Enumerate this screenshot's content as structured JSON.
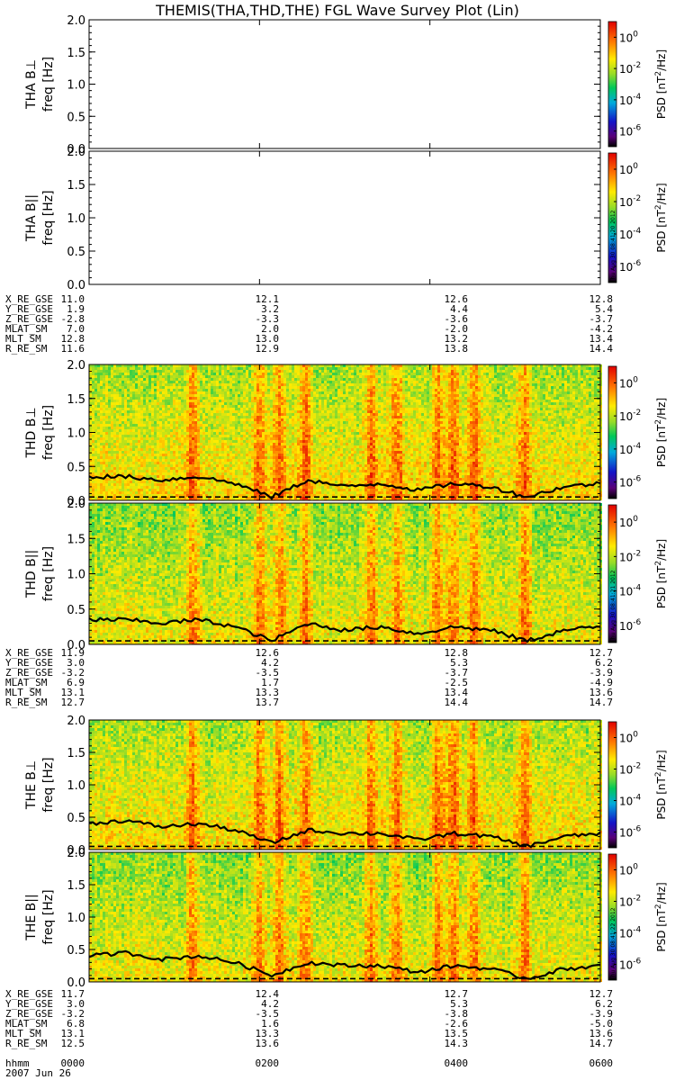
{
  "title": "THEMIS(THA,THD,THE) FGL Wave Survey Plot (Lin)",
  "colorbar": {
    "label_prefix": "PSD [nT",
    "label_suffix": "/Hz]",
    "label_sup": "2",
    "ticks": [
      {
        "base": "10",
        "exp": "0",
        "v": 0
      },
      {
        "base": "10",
        "exp": "-2",
        "v": -2
      },
      {
        "base": "10",
        "exp": "-4",
        "v": -4
      },
      {
        "base": "10",
        "exp": "-6",
        "v": -6
      }
    ],
    "range_log10": [
      -7,
      1
    ]
  },
  "stamps": {
    "tha": "Thu Aug 30 08:41:20 2012",
    "thd": "Thu Aug 30 08:41:21 2012",
    "the": "Thu Aug 30 08:41:22 2012"
  },
  "chart_data": [
    {
      "type": "heatmap",
      "probe": "THA",
      "component": "B⊥",
      "ylabel_1": "THA B⊥",
      "ylabel_2": "freq [Hz]",
      "ylim": [
        0,
        2.0
      ],
      "yticks": [
        "0.0",
        "0.5",
        "1.0",
        "1.5",
        "2.0"
      ],
      "has_data": false,
      "xlim": [
        "0000",
        "0600"
      ]
    },
    {
      "type": "heatmap",
      "probe": "THA",
      "component": "B||",
      "ylabel_1": "THA B||",
      "ylabel_2": "freq [Hz]",
      "ylim": [
        0,
        2.0
      ],
      "yticks": [
        "0.0",
        "0.5",
        "1.0",
        "1.5",
        "2.0"
      ],
      "has_data": false,
      "xlim": [
        "0000",
        "0600"
      ]
    },
    {
      "type": "heatmap",
      "probe": "THD",
      "component": "B⊥",
      "ylabel_1": "THD B⊥",
      "ylabel_2": "freq [Hz]",
      "ylim": [
        0,
        2.0
      ],
      "yticks": [
        "0.0",
        "0.5",
        "1.0",
        "1.5",
        "2.0"
      ],
      "has_data": true,
      "xlim": [
        "0000",
        "0600"
      ],
      "gyro_line_approx_hz": [
        0.35,
        0.35,
        0.3,
        0.35,
        0.25,
        0.05,
        0.3,
        0.2,
        0.25,
        0.15,
        0.25,
        0.2,
        0.05,
        0.2,
        0.25
      ]
    },
    {
      "type": "heatmap",
      "probe": "THD",
      "component": "B||",
      "ylabel_1": "THD B||",
      "ylabel_2": "freq [Hz]",
      "ylim": [
        0,
        2.0
      ],
      "yticks": [
        "0.0",
        "0.5",
        "1.0",
        "1.5",
        "2.0"
      ],
      "has_data": true,
      "xlim": [
        "0000",
        "0600"
      ],
      "gyro_line_approx_hz": [
        0.35,
        0.35,
        0.3,
        0.35,
        0.25,
        0.05,
        0.3,
        0.2,
        0.25,
        0.15,
        0.25,
        0.2,
        0.05,
        0.2,
        0.25
      ]
    },
    {
      "type": "heatmap",
      "probe": "THE",
      "component": "B⊥",
      "ylabel_1": "THE B⊥",
      "ylabel_2": "freq [Hz]",
      "ylim": [
        0,
        2.0
      ],
      "yticks": [
        "0.0",
        "0.5",
        "1.0",
        "1.5",
        "2.0"
      ],
      "has_data": true,
      "xlim": [
        "0000",
        "0600"
      ],
      "gyro_line_approx_hz": [
        0.4,
        0.45,
        0.35,
        0.4,
        0.3,
        0.1,
        0.3,
        0.25,
        0.25,
        0.15,
        0.25,
        0.2,
        0.05,
        0.2,
        0.25
      ]
    },
    {
      "type": "heatmap",
      "probe": "THE",
      "component": "B||",
      "ylabel_1": "THE B||",
      "ylabel_2": "freq [Hz]",
      "ylim": [
        0,
        2.0
      ],
      "yticks": [
        "0.0",
        "0.5",
        "1.0",
        "1.5",
        "2.0"
      ],
      "has_data": true,
      "xlim": [
        "0000",
        "0600"
      ],
      "gyro_line_approx_hz": [
        0.4,
        0.45,
        0.35,
        0.4,
        0.3,
        0.1,
        0.3,
        0.25,
        0.25,
        0.15,
        0.25,
        0.2,
        0.05,
        0.2,
        0.25
      ]
    }
  ],
  "orbit_tables": [
    {
      "probe": "THA",
      "rows": [
        {
          "label": "X_RE_GSE",
          "values": [
            "11.0",
            "12.1",
            "12.6",
            "12.8"
          ]
        },
        {
          "label": "Y_RE_GSE",
          "values": [
            "1.9",
            "3.2",
            "4.4",
            "5.4"
          ]
        },
        {
          "label": "Z_RE_GSE",
          "values": [
            "-2.8",
            "-3.3",
            "-3.6",
            "-3.7"
          ]
        },
        {
          "label": "MLAT_SM",
          "values": [
            "7.0",
            "2.0",
            "-2.0",
            "-4.2"
          ]
        },
        {
          "label": "MLT_SM",
          "values": [
            "12.8",
            "13.0",
            "13.2",
            "13.4"
          ]
        },
        {
          "label": "R_RE_SM",
          "values": [
            "11.6",
            "12.9",
            "13.8",
            "14.4"
          ]
        }
      ]
    },
    {
      "probe": "THD",
      "rows": [
        {
          "label": "X_RE_GSE",
          "values": [
            "11.9",
            "12.6",
            "12.8",
            "12.7"
          ]
        },
        {
          "label": "Y_RE_GSE",
          "values": [
            "3.0",
            "4.2",
            "5.3",
            "6.2"
          ]
        },
        {
          "label": "Z_RE_GSE",
          "values": [
            "-3.2",
            "-3.5",
            "-3.7",
            "-3.9"
          ]
        },
        {
          "label": "MLAT_SM",
          "values": [
            "6.9",
            "1.7",
            "-2.5",
            "-4.9"
          ]
        },
        {
          "label": "MLT_SM",
          "values": [
            "13.1",
            "13.3",
            "13.4",
            "13.6"
          ]
        },
        {
          "label": "R_RE_SM",
          "values": [
            "12.7",
            "13.7",
            "14.4",
            "14.7"
          ]
        }
      ]
    },
    {
      "probe": "THE",
      "rows": [
        {
          "label": "X_RE_GSE",
          "values": [
            "11.7",
            "12.4",
            "12.7",
            "12.7"
          ]
        },
        {
          "label": "Y_RE_GSE",
          "values": [
            "3.0",
            "4.2",
            "5.3",
            "6.2"
          ]
        },
        {
          "label": "Z_RE_GSE",
          "values": [
            "-3.2",
            "-3.5",
            "-3.8",
            "-3.9"
          ]
        },
        {
          "label": "MLAT_SM",
          "values": [
            "6.8",
            "1.6",
            "-2.6",
            "-5.0"
          ]
        },
        {
          "label": "MLT_SM",
          "values": [
            "13.1",
            "13.3",
            "13.5",
            "13.6"
          ]
        },
        {
          "label": "R_RE_SM",
          "values": [
            "12.5",
            "13.6",
            "14.3",
            "14.7"
          ]
        }
      ]
    }
  ],
  "time_axis": {
    "label": "hhmm",
    "ticks": [
      "0000",
      "0200",
      "0400",
      "0600"
    ],
    "date": "2007 Jun 26"
  }
}
